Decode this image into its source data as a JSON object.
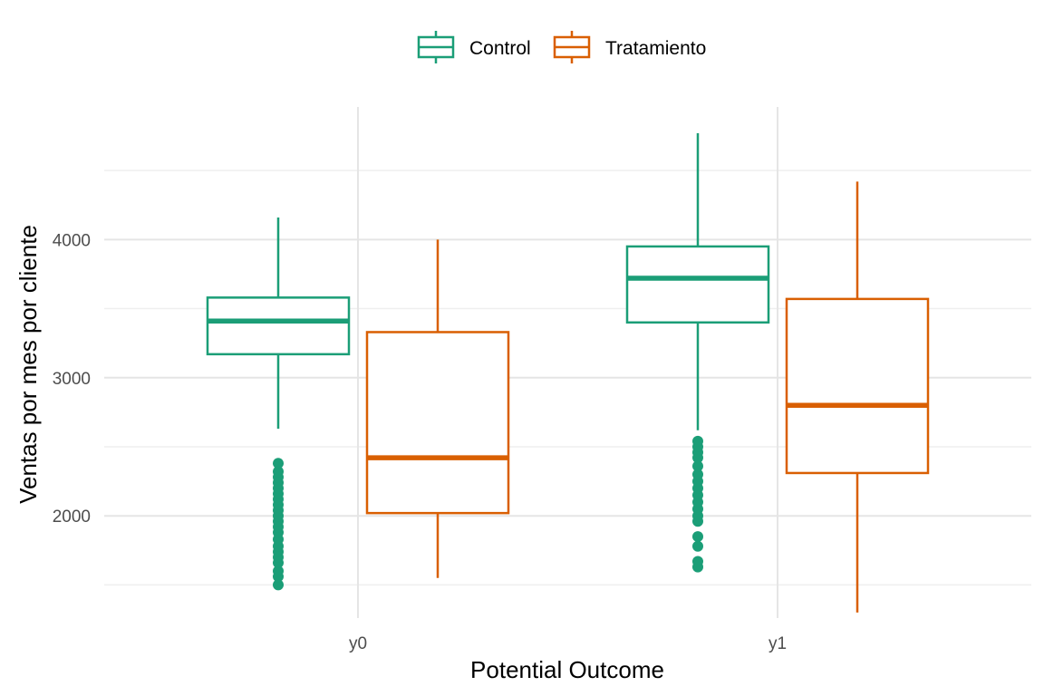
{
  "chart_data": {
    "type": "boxplot",
    "xlabel": "Potential Outcome",
    "ylabel": "Ventas por mes por cliente",
    "categories": [
      "y0",
      "y1"
    ],
    "ylim": [
      1260,
      4960
    ],
    "yticks": [
      2000,
      3000,
      4000
    ],
    "grid": true,
    "legend_position": "top",
    "series": [
      {
        "name": "Control",
        "color": "#1b9e77",
        "boxes": [
          {
            "category": "y0",
            "min": 2630,
            "q1": 3170,
            "median": 3410,
            "q3": 3580,
            "max": 4160,
            "outliers": [
              1500,
              1560,
              1600,
              1660,
              1700,
              1740,
              1780,
              1830,
              1880,
              1920,
              1960,
              2000,
              2040,
              2080,
              2120,
              2160,
              2200,
              2240,
              2280,
              2320,
              2380
            ]
          },
          {
            "category": "y1",
            "min": 2620,
            "q1": 3400,
            "median": 3720,
            "q3": 3950,
            "max": 4770,
            "outliers": [
              1630,
              1670,
              1780,
              1850,
              1960,
              2000,
              2050,
              2100,
              2150,
              2200,
              2250,
              2300,
              2360,
              2420,
              2460,
              2500,
              2540
            ]
          }
        ]
      },
      {
        "name": "Tratamiento",
        "color": "#d95f02",
        "boxes": [
          {
            "category": "y0",
            "min": 1550,
            "q1": 2020,
            "median": 2420,
            "q3": 3330,
            "max": 4000,
            "outliers": []
          },
          {
            "category": "y1",
            "min": 1300,
            "q1": 2310,
            "median": 2800,
            "q3": 3570,
            "max": 4420,
            "outliers": []
          }
        ]
      }
    ]
  }
}
